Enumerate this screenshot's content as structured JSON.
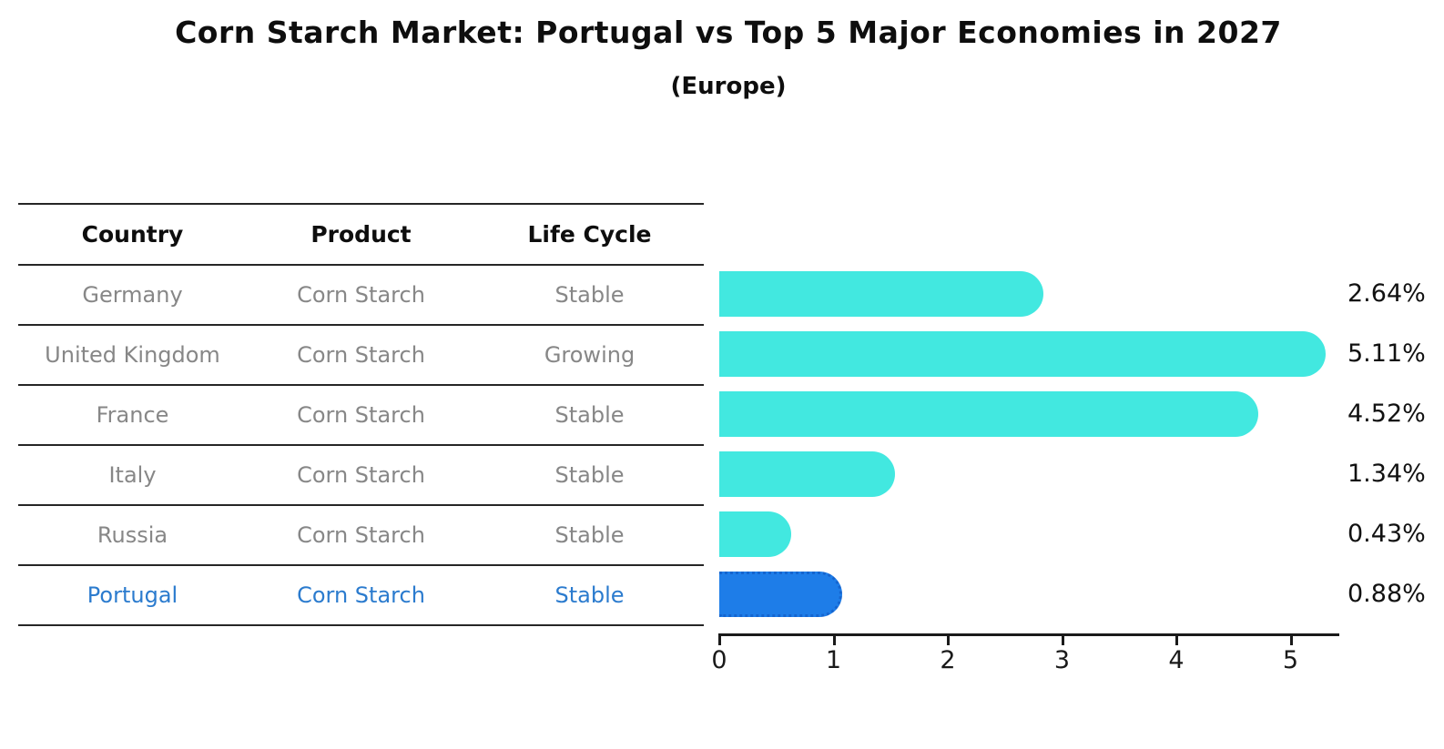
{
  "title": "Corn Starch Market: Portugal vs Top 5 Major Economies in 2027",
  "subtitle": "(Europe)",
  "table": {
    "headers": [
      "Country",
      "Product",
      "Life Cycle"
    ],
    "rows": [
      {
        "country": "Germany",
        "product": "Corn Starch",
        "life_cycle": "Stable",
        "highlight": false
      },
      {
        "country": "United Kingdom",
        "product": "Corn Starch",
        "life_cycle": "Growing",
        "highlight": false
      },
      {
        "country": "France",
        "product": "Corn Starch",
        "life_cycle": "Stable",
        "highlight": false
      },
      {
        "country": "Italy",
        "product": "Corn Starch",
        "life_cycle": "Stable",
        "highlight": false
      },
      {
        "country": "Russia",
        "product": "Corn Starch",
        "life_cycle": "Stable",
        "highlight": false
      },
      {
        "country": "Portugal",
        "product": "Corn Starch",
        "life_cycle": "Stable",
        "highlight": true
      }
    ]
  },
  "chart_data": {
    "type": "bar",
    "orientation": "horizontal",
    "title": "Corn Starch Market: Portugal vs Top 5 Major Economies in 2027",
    "subtitle": "(Europe)",
    "categories": [
      "Germany",
      "United Kingdom",
      "France",
      "Italy",
      "Russia",
      "Portugal"
    ],
    "values": [
      2.64,
      5.11,
      4.52,
      1.34,
      0.43,
      0.88
    ],
    "value_labels": [
      "2.64%",
      "5.11%",
      "4.52%",
      "1.34%",
      "0.43%",
      "0.88%"
    ],
    "xlabel": "",
    "ylabel": "",
    "xlim": [
      0,
      5.42
    ],
    "xticks": [
      0,
      1,
      2,
      3,
      4,
      5
    ],
    "grid": false,
    "legend": false,
    "highlight_index": 5,
    "bar_color": "#42e8e0",
    "highlight_bar_color": "#1e7de8",
    "highlight_text_color": "#2b7bce"
  }
}
